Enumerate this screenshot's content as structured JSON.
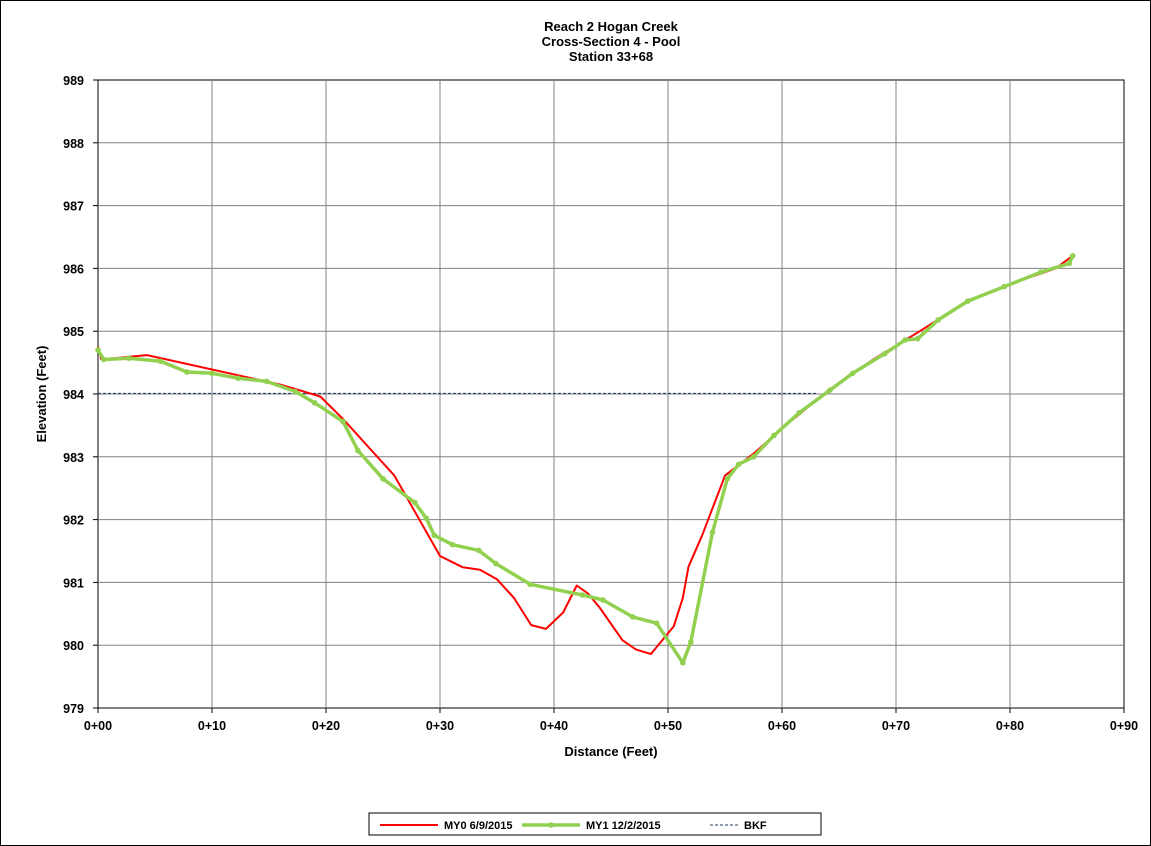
{
  "chart_data": {
    "type": "line",
    "title_lines": [
      "Reach 2 Hogan Creek",
      "Cross-Section 4 - Pool",
      "Station 33+68"
    ],
    "xlabel": "Distance (Feet)",
    "ylabel": "Elevation (Feet)",
    "xlim": [
      0,
      90
    ],
    "ylim": [
      979,
      989
    ],
    "x_ticks": [
      0,
      10,
      20,
      30,
      40,
      50,
      60,
      70,
      80,
      90
    ],
    "x_tick_labels": [
      "0+00",
      "0+10",
      "0+20",
      "0+30",
      "0+40",
      "0+50",
      "0+60",
      "0+70",
      "0+80",
      "0+90"
    ],
    "y_ticks": [
      979,
      980,
      981,
      982,
      983,
      984,
      985,
      986,
      987,
      988,
      989
    ],
    "y_tick_labels": [
      "979",
      "980",
      "981",
      "982",
      "983",
      "984",
      "985",
      "986",
      "987",
      "988",
      "989"
    ],
    "grid": true,
    "legend_position": "bottom",
    "series": [
      {
        "name": "MY0 6/9/2015",
        "color": "#ff0000",
        "style": "line",
        "x": [
          0,
          0.3,
          4.3,
          16.0,
          19.5,
          21.5,
          26.0,
          30.0,
          32.0,
          33.5,
          35.0,
          36.5,
          38.0,
          39.3,
          40.8,
          42.0,
          43.0,
          44.0,
          46.0,
          47.2,
          48.5,
          50.5,
          51.3,
          51.8,
          53.0,
          55.0,
          57.5,
          60.0,
          64.0,
          68.0,
          72.0,
          76.0,
          80.0,
          84.0,
          85.5
        ],
        "y": [
          984.75,
          984.55,
          984.62,
          984.15,
          983.96,
          983.6,
          982.7,
          981.42,
          981.24,
          981.2,
          981.05,
          980.75,
          980.32,
          980.26,
          980.52,
          980.95,
          980.82,
          980.6,
          980.08,
          979.93,
          979.86,
          980.3,
          980.75,
          981.25,
          981.75,
          982.7,
          983.05,
          983.45,
          984.05,
          984.55,
          984.99,
          985.45,
          985.75,
          986.0,
          986.2
        ]
      },
      {
        "name": "MY1 12/2/2015",
        "color": "#92d050",
        "style": "line-markers",
        "x": [
          0,
          0.5,
          2.7,
          5.5,
          7.8,
          10.0,
          12.3,
          14.8,
          17.3,
          19.0,
          21.5,
          22.8,
          25.0,
          27.8,
          28.8,
          29.5,
          31.1,
          33.4,
          34.9,
          37.9,
          42.5,
          44.3,
          46.9,
          49.0,
          51.3,
          52.0,
          53.9,
          55.2,
          56.2,
          57.5,
          59.3,
          61.5,
          64.2,
          66.2,
          69.0,
          70.8,
          71.9,
          73.7,
          76.3,
          79.5,
          82.7,
          85.2,
          85.5
        ],
        "y": [
          984.7,
          984.55,
          984.57,
          984.52,
          984.35,
          984.33,
          984.25,
          984.2,
          984.04,
          983.86,
          983.56,
          983.1,
          982.65,
          982.27,
          982.02,
          981.75,
          981.6,
          981.51,
          981.3,
          980.97,
          980.8,
          980.72,
          980.45,
          980.35,
          979.72,
          980.05,
          981.8,
          982.65,
          982.88,
          983.0,
          983.34,
          983.7,
          984.06,
          984.33,
          984.64,
          984.86,
          984.88,
          985.18,
          985.48,
          985.71,
          985.94,
          986.08,
          986.2
        ]
      },
      {
        "name": "BKF",
        "color": "#1f3864",
        "style": "dashed",
        "x": [
          0,
          63.0
        ],
        "y": [
          984.01,
          984.01
        ]
      }
    ]
  }
}
